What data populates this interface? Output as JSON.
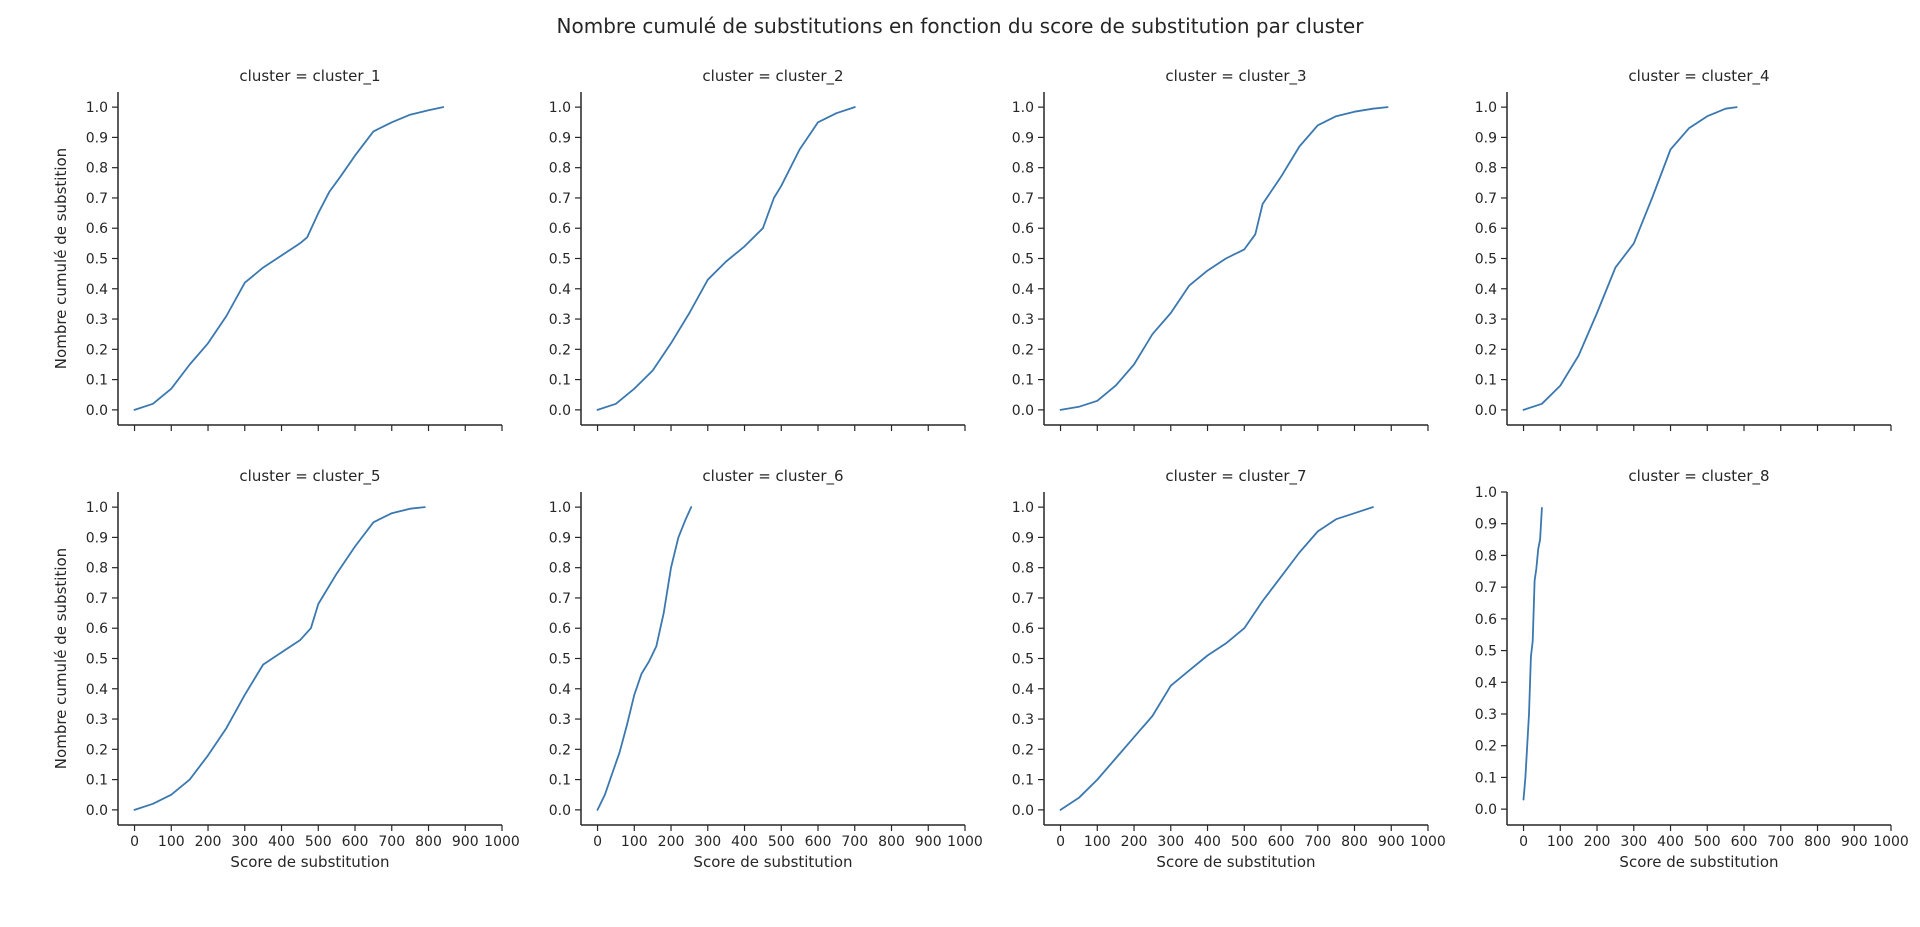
{
  "figure": {
    "title": "Nombre cumulé de substitutions en fonction du score de substitution par cluster",
    "xlabel": "Score de substitution",
    "ylabel": "Nombre cumulé de substition",
    "line_color": "#3b78b0",
    "axis_color": "#262626"
  },
  "chart_data": [
    {
      "type": "line",
      "title": "cluster = cluster_1",
      "xlim": [
        -45,
        1000
      ],
      "ylim": [
        -0.05,
        1.05
      ],
      "xticks": [
        0,
        100,
        200,
        300,
        400,
        500,
        600,
        700,
        800,
        900,
        1000
      ],
      "yticks": [
        0.0,
        0.1,
        0.2,
        0.3,
        0.4,
        0.5,
        0.6,
        0.7,
        0.8,
        0.9,
        1.0
      ],
      "show_xticklabels": false,
      "show_xlabel": false,
      "show_ylabel": true,
      "x": [
        0,
        50,
        100,
        150,
        200,
        250,
        300,
        350,
        400,
        450,
        470,
        500,
        530,
        560,
        600,
        650,
        700,
        750,
        800,
        840
      ],
      "y": [
        0.0,
        0.02,
        0.07,
        0.15,
        0.22,
        0.31,
        0.42,
        0.47,
        0.51,
        0.55,
        0.57,
        0.65,
        0.72,
        0.77,
        0.84,
        0.92,
        0.95,
        0.975,
        0.99,
        1.0
      ]
    },
    {
      "type": "line",
      "title": "cluster = cluster_2",
      "xlim": [
        -45,
        1000
      ],
      "ylim": [
        -0.05,
        1.05
      ],
      "xticks": [
        0,
        100,
        200,
        300,
        400,
        500,
        600,
        700,
        800,
        900,
        1000
      ],
      "yticks": [
        0.0,
        0.1,
        0.2,
        0.3,
        0.4,
        0.5,
        0.6,
        0.7,
        0.8,
        0.9,
        1.0
      ],
      "show_xticklabels": false,
      "show_xlabel": false,
      "show_ylabel": false,
      "x": [
        0,
        50,
        100,
        150,
        200,
        250,
        300,
        350,
        400,
        450,
        480,
        500,
        550,
        600,
        650,
        700
      ],
      "y": [
        0.0,
        0.02,
        0.07,
        0.13,
        0.22,
        0.32,
        0.43,
        0.49,
        0.54,
        0.6,
        0.7,
        0.74,
        0.86,
        0.95,
        0.98,
        1.0
      ]
    },
    {
      "type": "line",
      "title": "cluster = cluster_3",
      "xlim": [
        -45,
        1000
      ],
      "ylim": [
        -0.05,
        1.05
      ],
      "xticks": [
        0,
        100,
        200,
        300,
        400,
        500,
        600,
        700,
        800,
        900,
        1000
      ],
      "yticks": [
        0.0,
        0.1,
        0.2,
        0.3,
        0.4,
        0.5,
        0.6,
        0.7,
        0.8,
        0.9,
        1.0
      ],
      "show_xticklabels": false,
      "show_xlabel": false,
      "show_ylabel": false,
      "x": [
        0,
        50,
        100,
        150,
        200,
        250,
        300,
        350,
        400,
        450,
        500,
        530,
        550,
        600,
        650,
        700,
        750,
        800,
        850,
        890
      ],
      "y": [
        0.0,
        0.01,
        0.03,
        0.08,
        0.15,
        0.25,
        0.32,
        0.41,
        0.46,
        0.5,
        0.53,
        0.58,
        0.68,
        0.77,
        0.87,
        0.94,
        0.97,
        0.985,
        0.995,
        1.0
      ]
    },
    {
      "type": "line",
      "title": "cluster = cluster_4",
      "xlim": [
        -45,
        1000
      ],
      "ylim": [
        -0.05,
        1.05
      ],
      "xticks": [
        0,
        100,
        200,
        300,
        400,
        500,
        600,
        700,
        800,
        900,
        1000
      ],
      "yticks": [
        0.0,
        0.1,
        0.2,
        0.3,
        0.4,
        0.5,
        0.6,
        0.7,
        0.8,
        0.9,
        1.0
      ],
      "show_xticklabels": false,
      "show_xlabel": false,
      "show_ylabel": false,
      "x": [
        0,
        50,
        100,
        150,
        200,
        250,
        300,
        350,
        400,
        450,
        500,
        550,
        580
      ],
      "y": [
        0.0,
        0.02,
        0.08,
        0.18,
        0.32,
        0.47,
        0.55,
        0.7,
        0.86,
        0.93,
        0.97,
        0.995,
        1.0
      ]
    },
    {
      "type": "line",
      "title": "cluster = cluster_5",
      "xlim": [
        -45,
        1000
      ],
      "ylim": [
        -0.05,
        1.05
      ],
      "xticks": [
        0,
        100,
        200,
        300,
        400,
        500,
        600,
        700,
        800,
        900,
        1000
      ],
      "yticks": [
        0.0,
        0.1,
        0.2,
        0.3,
        0.4,
        0.5,
        0.6,
        0.7,
        0.8,
        0.9,
        1.0
      ],
      "show_xticklabels": true,
      "show_xlabel": true,
      "show_ylabel": true,
      "x": [
        0,
        50,
        100,
        150,
        200,
        250,
        300,
        350,
        400,
        450,
        480,
        500,
        550,
        600,
        650,
        700,
        750,
        790
      ],
      "y": [
        0.0,
        0.02,
        0.05,
        0.1,
        0.18,
        0.27,
        0.38,
        0.48,
        0.52,
        0.56,
        0.6,
        0.68,
        0.78,
        0.87,
        0.95,
        0.98,
        0.995,
        1.0
      ]
    },
    {
      "type": "line",
      "title": "cluster = cluster_6",
      "xlim": [
        -45,
        1000
      ],
      "ylim": [
        -0.05,
        1.05
      ],
      "xticks": [
        0,
        100,
        200,
        300,
        400,
        500,
        600,
        700,
        800,
        900,
        1000
      ],
      "yticks": [
        0.0,
        0.1,
        0.2,
        0.3,
        0.4,
        0.5,
        0.6,
        0.7,
        0.8,
        0.9,
        1.0
      ],
      "show_xticklabels": true,
      "show_xlabel": true,
      "show_ylabel": false,
      "x": [
        0,
        20,
        40,
        60,
        80,
        100,
        120,
        140,
        160,
        180,
        200,
        220,
        240,
        255
      ],
      "y": [
        0.0,
        0.05,
        0.12,
        0.19,
        0.28,
        0.38,
        0.45,
        0.49,
        0.54,
        0.65,
        0.8,
        0.9,
        0.96,
        1.0
      ]
    },
    {
      "type": "line",
      "title": "cluster = cluster_7",
      "xlim": [
        -45,
        1000
      ],
      "ylim": [
        -0.05,
        1.05
      ],
      "xticks": [
        0,
        100,
        200,
        300,
        400,
        500,
        600,
        700,
        800,
        900,
        1000
      ],
      "yticks": [
        0.0,
        0.1,
        0.2,
        0.3,
        0.4,
        0.5,
        0.6,
        0.7,
        0.8,
        0.9,
        1.0
      ],
      "show_xticklabels": true,
      "show_xlabel": true,
      "show_ylabel": false,
      "x": [
        0,
        50,
        100,
        150,
        200,
        250,
        300,
        350,
        400,
        450,
        500,
        550,
        600,
        650,
        700,
        750,
        800,
        850
      ],
      "y": [
        0.0,
        0.04,
        0.1,
        0.17,
        0.24,
        0.31,
        0.41,
        0.46,
        0.51,
        0.55,
        0.6,
        0.69,
        0.77,
        0.85,
        0.92,
        0.96,
        0.98,
        1.0
      ]
    },
    {
      "type": "line",
      "title": "cluster = cluster_8",
      "xlim": [
        -45,
        1000
      ],
      "ylim": [
        -0.05,
        1.0
      ],
      "xticks": [
        0,
        100,
        200,
        300,
        400,
        500,
        600,
        700,
        800,
        900,
        1000
      ],
      "yticks": [
        0.0,
        0.1,
        0.2,
        0.3,
        0.4,
        0.5,
        0.6,
        0.7,
        0.8,
        0.9,
        1.0
      ],
      "show_xticklabels": true,
      "show_xlabel": true,
      "show_ylabel": false,
      "x": [
        0,
        5,
        10,
        15,
        20,
        25,
        30,
        35,
        40,
        45,
        50
      ],
      "y": [
        0.03,
        0.1,
        0.2,
        0.3,
        0.48,
        0.53,
        0.72,
        0.76,
        0.82,
        0.85,
        0.95
      ]
    }
  ]
}
